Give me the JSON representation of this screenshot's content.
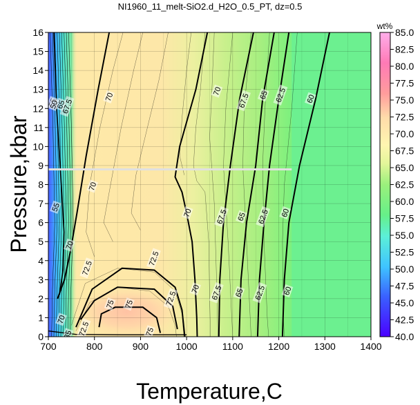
{
  "chart_data": {
    "type": "heatmap",
    "title": "NI1960_11_melt-SiO2.d_H2O_0.5_PT, dz=0.5",
    "xlabel": "Temperature,C",
    "ylabel": "Pressure,kbar",
    "xlim": [
      700,
      1400
    ],
    "ylim": [
      0,
      16
    ],
    "x_ticks": [
      "700",
      "800",
      "900",
      "1000",
      "1100",
      "1200",
      "1300",
      "1400"
    ],
    "y_ticks": [
      "0",
      "1",
      "2",
      "3",
      "4",
      "5",
      "6",
      "7",
      "8",
      "9",
      "10",
      "11",
      "12",
      "13",
      "14",
      "15",
      "16"
    ],
    "grid": true,
    "colorbar": {
      "label": "wt%",
      "range": [
        40.0,
        85.0
      ],
      "ticks": [
        "40.0",
        "42.5",
        "45.0",
        "47.5",
        "50.0",
        "52.5",
        "55.0",
        "57.5",
        "60.0",
        "62.5",
        "65.0",
        "67.5",
        "70.0",
        "72.5",
        "75.0",
        "77.5",
        "80.0",
        "82.5",
        "85.0"
      ],
      "position": "right"
    },
    "contour_levels_bold": [
      "60",
      "62.5",
      "65",
      "67.5",
      "70",
      "72.5",
      "75"
    ],
    "contour_labels": [
      {
        "text": "70",
        "x": 833,
        "y": 12.6
      },
      {
        "text": "70",
        "x": 1067,
        "y": 12.9
      },
      {
        "text": "67.5",
        "x": 1125,
        "y": 12.4
      },
      {
        "text": "65",
        "x": 1168,
        "y": 12.7
      },
      {
        "text": "62.5",
        "x": 1205,
        "y": 12.7
      },
      {
        "text": "60",
        "x": 1270,
        "y": 12.5
      },
      {
        "text": "67.5",
        "x": 742,
        "y": 12.1
      },
      {
        "text": "65",
        "x": 728,
        "y": 12.2
      },
      {
        "text": "55",
        "x": 710,
        "y": 12.3
      },
      {
        "text": "50",
        "x": 713,
        "y": 12.2
      },
      {
        "text": "70",
        "x": 797,
        "y": 7.9
      },
      {
        "text": "70",
        "x": 1003,
        "y": 6.5
      },
      {
        "text": "67.5",
        "x": 1077,
        "y": 6.3
      },
      {
        "text": "65",
        "x": 1120,
        "y": 6.3
      },
      {
        "text": "62.5",
        "x": 1167,
        "y": 6.3
      },
      {
        "text": "60",
        "x": 1215,
        "y": 6.5
      },
      {
        "text": "55",
        "x": 717,
        "y": 6.8
      },
      {
        "text": "70",
        "x": 747,
        "y": 4.8
      },
      {
        "text": "72.5",
        "x": 930,
        "y": 4.1
      },
      {
        "text": "72.5",
        "x": 785,
        "y": 3.6
      },
      {
        "text": "70",
        "x": 1020,
        "y": 2.5
      },
      {
        "text": "67.5",
        "x": 1066,
        "y": 2.3
      },
      {
        "text": "65",
        "x": 1115,
        "y": 2.3
      },
      {
        "text": "62.5",
        "x": 1160,
        "y": 2.3
      },
      {
        "text": "60",
        "x": 1220,
        "y": 2.4
      },
      {
        "text": "72.5",
        "x": 967,
        "y": 2.0
      },
      {
        "text": "75",
        "x": 835,
        "y": 1.7
      },
      {
        "text": "75",
        "x": 876,
        "y": 1.7
      },
      {
        "text": "72.5",
        "x": 778,
        "y": 0.4
      },
      {
        "text": "75",
        "x": 921,
        "y": 0.25
      },
      {
        "text": "70",
        "x": 729,
        "y": 0.9
      },
      {
        "text": "35",
        "x": 743,
        "y": 0.1
      }
    ],
    "annotation_line": {
      "pressure": 8.8,
      "t_start": 700,
      "t_end": 1228
    }
  }
}
